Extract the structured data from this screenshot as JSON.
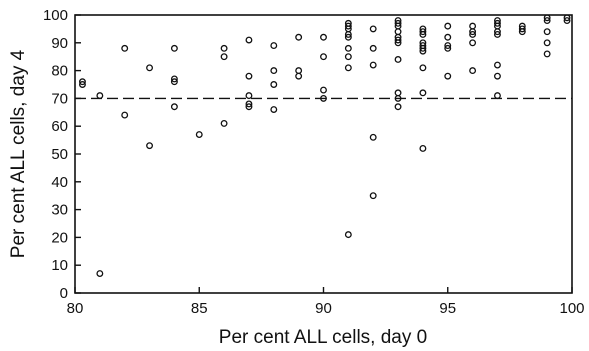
{
  "chart_data": {
    "type": "scatter",
    "title": "",
    "xlabel": "Per cent ALL cells, day 0",
    "ylabel": "Per cent ALL cells, day 4",
    "xlim": [
      80,
      100
    ],
    "ylim": [
      0,
      100
    ],
    "xticks": [
      80,
      85,
      90,
      95,
      100
    ],
    "yticks": [
      0,
      10,
      20,
      30,
      40,
      50,
      60,
      70,
      80,
      90,
      100
    ],
    "grid": false,
    "legend": "none",
    "reference_line": {
      "y": 70,
      "style": "dashed"
    },
    "marker": "open-circle",
    "points": [
      [
        80.3,
        76
      ],
      [
        80.3,
        75
      ],
      [
        81,
        71
      ],
      [
        81,
        7
      ],
      [
        82,
        88
      ],
      [
        82,
        64
      ],
      [
        83,
        81
      ],
      [
        83,
        53
      ],
      [
        84,
        88
      ],
      [
        84,
        77
      ],
      [
        84,
        76
      ],
      [
        84,
        67
      ],
      [
        85,
        57
      ],
      [
        86,
        88
      ],
      [
        86,
        85
      ],
      [
        86,
        61
      ],
      [
        87,
        91
      ],
      [
        87,
        78
      ],
      [
        87,
        71
      ],
      [
        87,
        68
      ],
      [
        87,
        67
      ],
      [
        88,
        89
      ],
      [
        88,
        80
      ],
      [
        88,
        75
      ],
      [
        88,
        66
      ],
      [
        89,
        92
      ],
      [
        89,
        80
      ],
      [
        89,
        78
      ],
      [
        90,
        92
      ],
      [
        90,
        85
      ],
      [
        90,
        73
      ],
      [
        90,
        70
      ],
      [
        91,
        97
      ],
      [
        91,
        96
      ],
      [
        91,
        95
      ],
      [
        91,
        93
      ],
      [
        91,
        92
      ],
      [
        91,
        88
      ],
      [
        91,
        85
      ],
      [
        91,
        81
      ],
      [
        91,
        21
      ],
      [
        92,
        95
      ],
      [
        92,
        88
      ],
      [
        92,
        82
      ],
      [
        92,
        56
      ],
      [
        92,
        35
      ],
      [
        93,
        98
      ],
      [
        93,
        97
      ],
      [
        93,
        96
      ],
      [
        93,
        94
      ],
      [
        93,
        92
      ],
      [
        93,
        91
      ],
      [
        93,
        90
      ],
      [
        93,
        84
      ],
      [
        93,
        72
      ],
      [
        93,
        70
      ],
      [
        93,
        67
      ],
      [
        94,
        95
      ],
      [
        94,
        94
      ],
      [
        94,
        93
      ],
      [
        94,
        90
      ],
      [
        94,
        89
      ],
      [
        94,
        88
      ],
      [
        94,
        87
      ],
      [
        94,
        81
      ],
      [
        94,
        72
      ],
      [
        94,
        52
      ],
      [
        95,
        96
      ],
      [
        95,
        92
      ],
      [
        95,
        89
      ],
      [
        95,
        88
      ],
      [
        95,
        78
      ],
      [
        96,
        96
      ],
      [
        96,
        94
      ],
      [
        96,
        93
      ],
      [
        96,
        90
      ],
      [
        96,
        80
      ],
      [
        97,
        98
      ],
      [
        97,
        97
      ],
      [
        97,
        96
      ],
      [
        97,
        94
      ],
      [
        97,
        93
      ],
      [
        97,
        82
      ],
      [
        97,
        78
      ],
      [
        97,
        71
      ],
      [
        98,
        96
      ],
      [
        98,
        95
      ],
      [
        98,
        94
      ],
      [
        99,
        99
      ],
      [
        99,
        98
      ],
      [
        99,
        94
      ],
      [
        99,
        90
      ],
      [
        99,
        86
      ],
      [
        99.8,
        99
      ],
      [
        99.8,
        98
      ]
    ]
  }
}
